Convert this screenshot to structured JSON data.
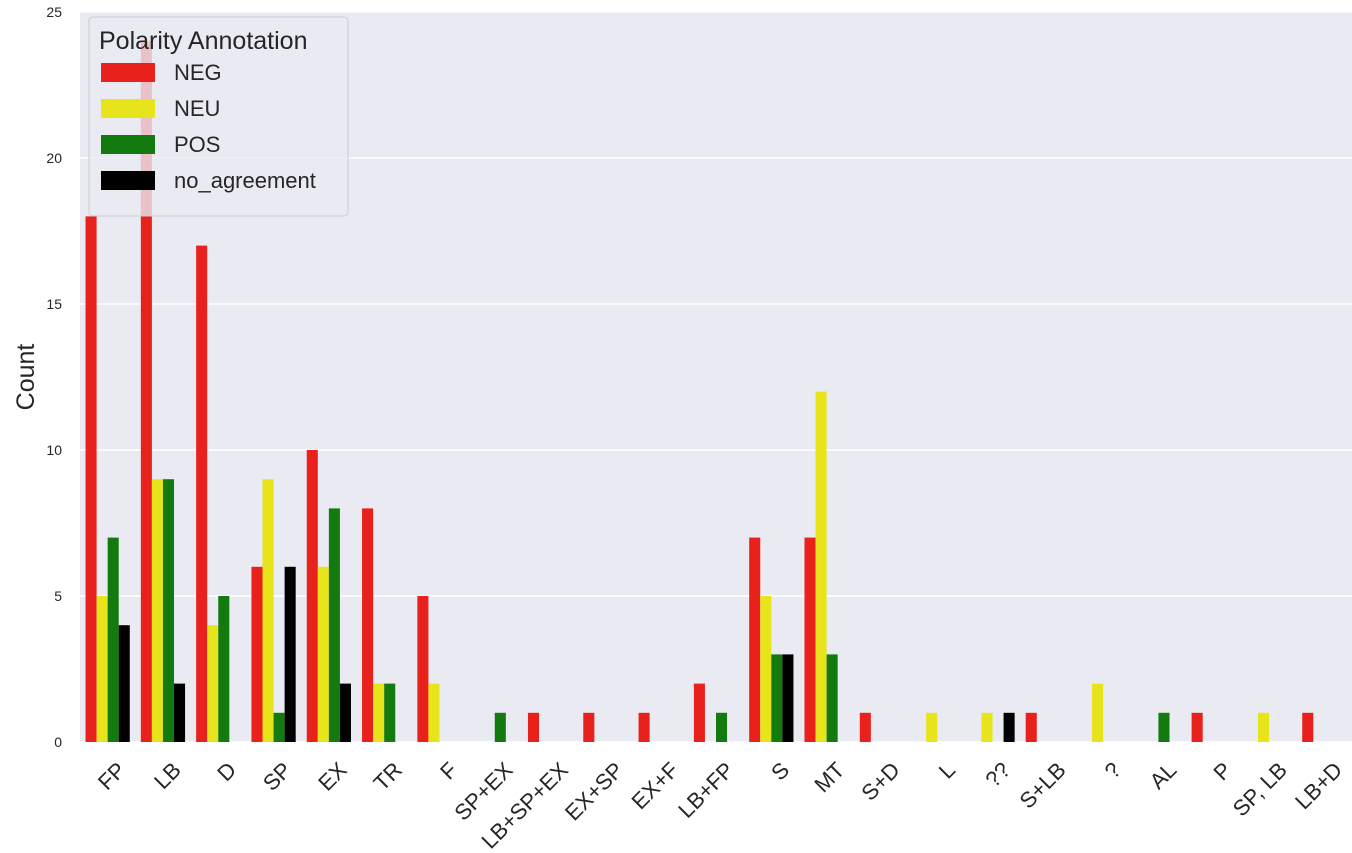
{
  "chart_data": {
    "type": "bar",
    "title": "",
    "xlabel": "",
    "ylabel": "Count",
    "ylim": [
      0,
      25
    ],
    "yticks": [
      0,
      5,
      10,
      15,
      20,
      25
    ],
    "grid": true,
    "legend": {
      "title": "Polarity Annotation",
      "placement": "top-left"
    },
    "categories": [
      "FP",
      "LB",
      "D",
      "SP",
      "EX",
      "TR",
      "F",
      "SP+EX",
      "LB+SP+EX",
      "EX+SP",
      "EX+F",
      "LB+FP",
      "S",
      "MT",
      "S+D",
      "L",
      "??",
      "S+LB",
      "?",
      "AL",
      "P",
      "SP, LB",
      "LB+D"
    ],
    "series": [
      {
        "name": "NEG",
        "color": "#e8211c",
        "values": [
          18,
          24,
          17,
          6,
          10,
          8,
          5,
          0,
          1,
          1,
          1,
          2,
          7,
          7,
          1,
          0,
          0,
          1,
          0,
          0,
          1,
          0,
          1
        ]
      },
      {
        "name": "NEU",
        "color": "#e8e41c",
        "values": [
          5,
          9,
          4,
          9,
          6,
          2,
          2,
          0,
          0,
          0,
          0,
          0,
          5,
          12,
          0,
          1,
          1,
          0,
          2,
          0,
          0,
          1,
          0
        ]
      },
      {
        "name": "POS",
        "color": "#137a0f",
        "values": [
          7,
          9,
          5,
          1,
          8,
          2,
          0,
          1,
          0,
          0,
          0,
          1,
          3,
          3,
          0,
          0,
          0,
          0,
          0,
          1,
          0,
          0,
          0
        ]
      },
      {
        "name": "no_agreement",
        "color": "#000000",
        "values": [
          4,
          2,
          0,
          6,
          2,
          0,
          0,
          0,
          0,
          0,
          0,
          0,
          3,
          0,
          0,
          0,
          1,
          0,
          0,
          0,
          0,
          0,
          0
        ]
      }
    ]
  }
}
